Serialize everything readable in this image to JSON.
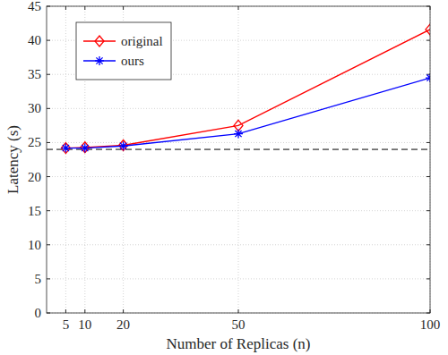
{
  "chart_data": {
    "type": "line",
    "x_label": "Number of Replicas (n)",
    "y_label": "Latency (s)",
    "x": [
      5,
      10,
      20,
      50,
      100
    ],
    "series": [
      {
        "name": "original",
        "color": "#ff0000",
        "marker": "diamond",
        "values": [
          24.2,
          24.3,
          24.6,
          27.5,
          41.6
        ]
      },
      {
        "name": "ours",
        "color": "#0000ff",
        "marker": "asterisk",
        "values": [
          24.2,
          24.2,
          24.5,
          26.3,
          34.5
        ]
      }
    ],
    "reference_line": {
      "value": 24,
      "line_style": "dashed",
      "color": "#000000"
    },
    "xlim": [
      0,
      100
    ],
    "xticks": [
      5,
      10,
      20,
      50,
      100
    ],
    "ylim": [
      0,
      45
    ],
    "yticks": [
      0,
      5,
      10,
      15,
      20,
      25,
      30,
      35,
      40,
      45
    ],
    "grid": true,
    "legend": "upper left"
  }
}
